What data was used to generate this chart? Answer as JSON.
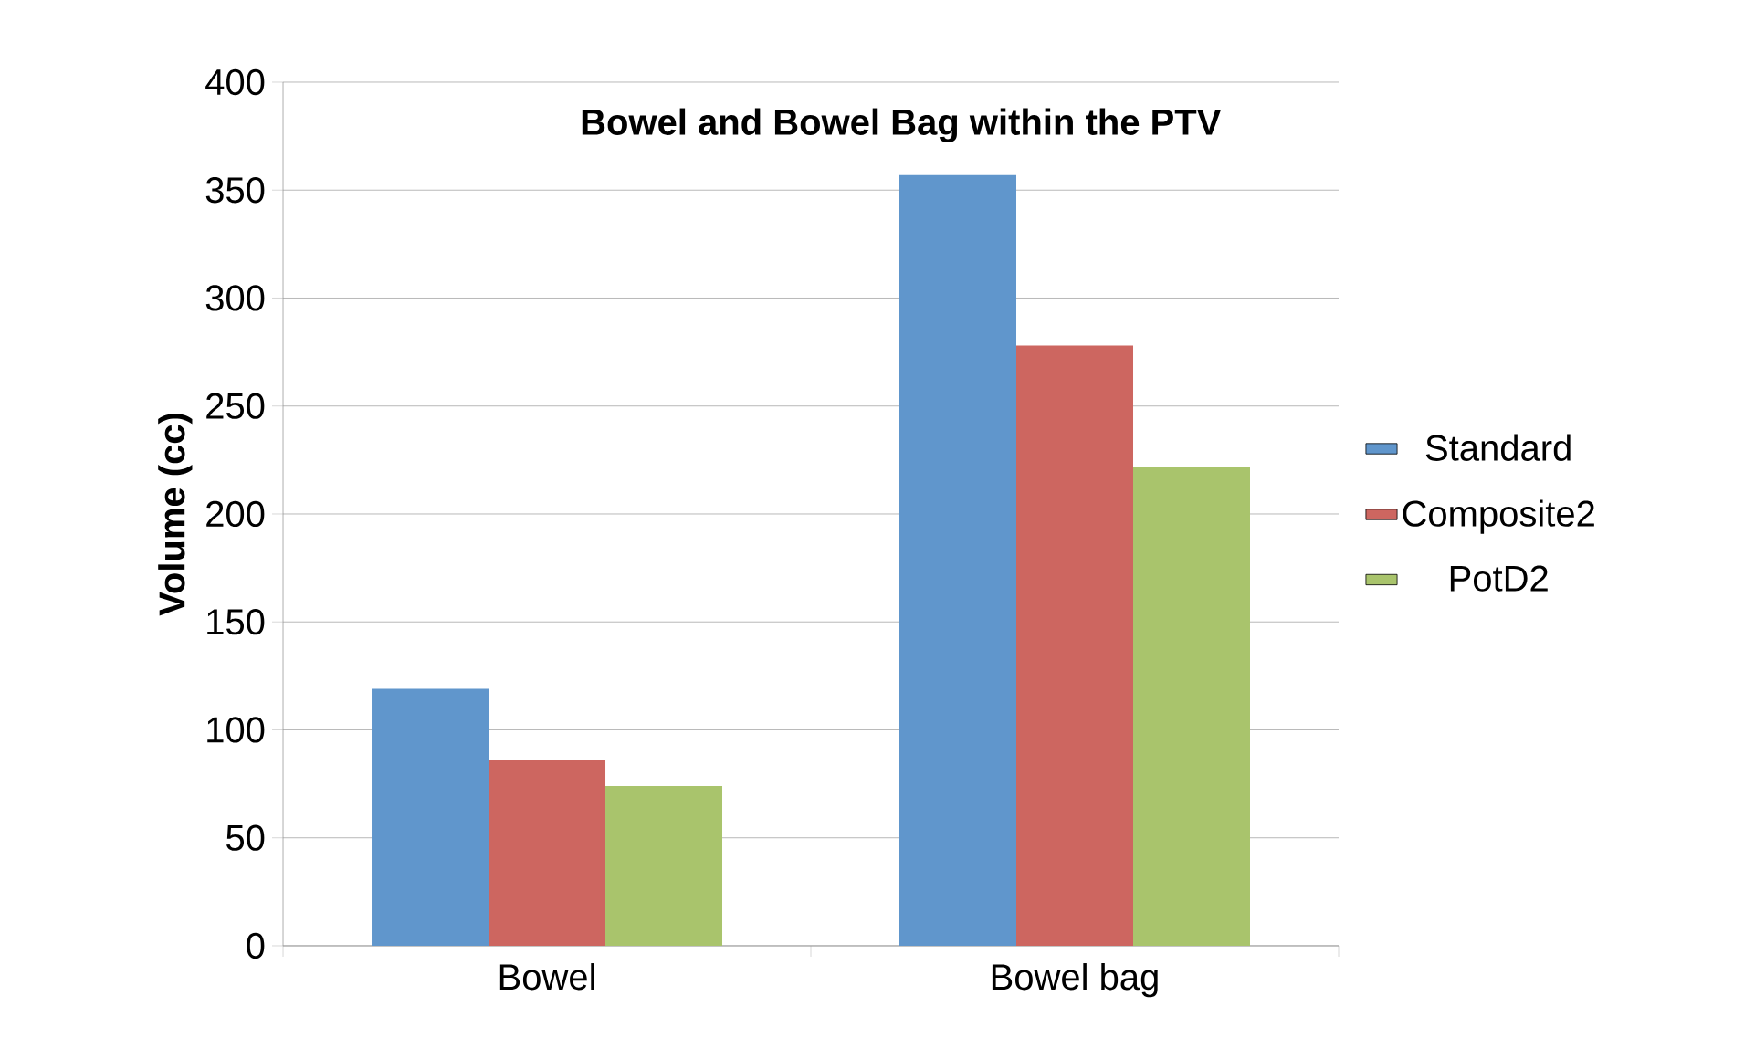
{
  "chart_data": {
    "type": "bar",
    "title": "Bowel and Bowel Bag within the PTV",
    "ylabel": "Volume (cc)",
    "categories": [
      "Bowel",
      "Bowel bag"
    ],
    "series": [
      {
        "name": "Standard",
        "color": "#6096cc",
        "values": [
          119,
          357
        ]
      },
      {
        "name": "Composite2",
        "color": "#cd6660",
        "values": [
          86,
          278
        ]
      },
      {
        "name": "PotD2",
        "color": "#a9c46c",
        "values": [
          74,
          222
        ]
      }
    ],
    "ylim": [
      0,
      400
    ],
    "yticks": [
      0,
      50,
      100,
      150,
      200,
      250,
      300,
      350,
      400
    ],
    "grid": "y",
    "legend": "right"
  }
}
